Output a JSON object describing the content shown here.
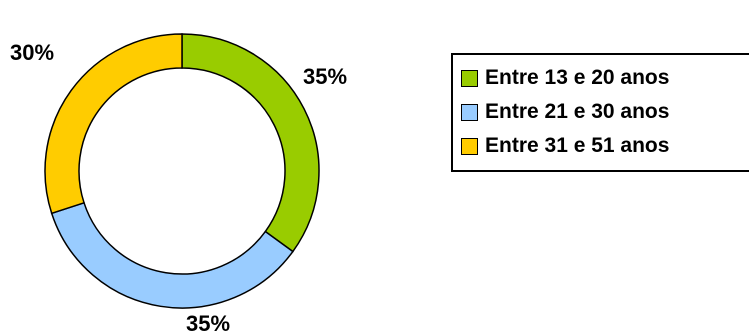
{
  "chart_data": {
    "type": "pie",
    "variant": "donut",
    "categories": [
      "Entre 13 e 20 anos",
      "Entre 21 e 30 anos",
      "Entre 31 e 51 anos"
    ],
    "values": [
      35,
      35,
      30
    ],
    "value_labels": [
      "35%",
      "35%",
      "30%"
    ],
    "colors": [
      "#99cc00",
      "#99ccff",
      "#ffcc00"
    ],
    "legend_position": "right"
  },
  "legend": {
    "items": [
      {
        "label": "Entre 13 e 20 anos"
      },
      {
        "label": "Entre 21 e 30 anos"
      },
      {
        "label": "Entre 31 e 51 anos"
      }
    ]
  }
}
